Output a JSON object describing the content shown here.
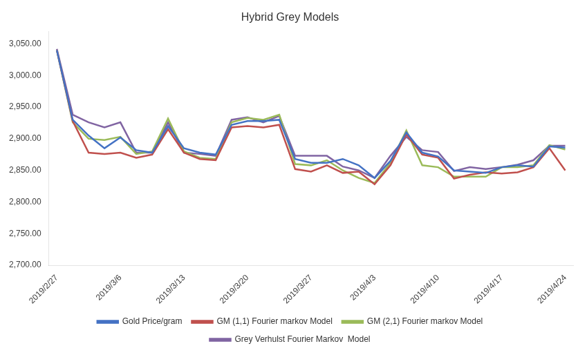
{
  "chart_data": {
    "type": "line",
    "title": "Hybrid Grey Models",
    "categories": [
      "2019/2/27",
      null,
      null,
      null,
      "2019/3/6",
      null,
      null,
      null,
      "2019/3/13",
      null,
      null,
      null,
      "2019/3/20",
      null,
      null,
      null,
      "2019/3/27",
      null,
      null,
      null,
      "2019/4/3",
      null,
      null,
      null,
      "2019/4/10",
      null,
      null,
      null,
      "2019/4/17",
      null,
      null,
      null,
      "2019/4/24"
    ],
    "series": [
      {
        "name": "Gold Price/gram",
        "color": "#4472C4",
        "values": [
          3040,
          2930,
          2905,
          2885,
          2902,
          2882,
          2878,
          2920,
          2885,
          2878,
          2875,
          2922,
          2928,
          2928,
          2930,
          2868,
          2862,
          2862,
          2868,
          2858,
          2838,
          2865,
          2910,
          2878,
          2872,
          2850,
          2848,
          2846,
          2855,
          2858,
          2856,
          2888,
          2886
        ]
      },
      {
        "name": "GM (1,1) Fourier markov Model",
        "color": "#C0504D",
        "values": [
          3040,
          2928,
          2878,
          2876,
          2878,
          2870,
          2875,
          2915,
          2878,
          2868,
          2866,
          2918,
          2920,
          2918,
          2922,
          2852,
          2848,
          2858,
          2846,
          2848,
          2828,
          2858,
          2907,
          2875,
          2870,
          2837,
          2843,
          2847,
          2845,
          2847,
          2855,
          2885,
          2850
        ]
      },
      {
        "name": "GM (2,1) Fourier markov Model",
        "color": "#9BBB59",
        "values": [
          3040,
          2926,
          2900,
          2898,
          2903,
          2876,
          2880,
          2932,
          2880,
          2870,
          2868,
          2926,
          2933,
          2930,
          2938,
          2860,
          2858,
          2866,
          2850,
          2838,
          2830,
          2862,
          2913,
          2858,
          2855,
          2840,
          2840,
          2840,
          2855,
          2855,
          2858,
          2890,
          2883
        ]
      },
      {
        "name": "Grey Verhulst Fourier Markov  Model",
        "color": "#8064A2",
        "values": [
          3042,
          2938,
          2926,
          2918,
          2926,
          2878,
          2878,
          2926,
          2878,
          2876,
          2873,
          2930,
          2934,
          2926,
          2936,
          2873,
          2873,
          2873,
          2856,
          2850,
          2838,
          2873,
          2903,
          2882,
          2879,
          2849,
          2855,
          2852,
          2855,
          2859,
          2866,
          2889,
          2889
        ]
      }
    ],
    "ylim": [
      2700,
      3070
    ],
    "yticks": [
      {
        "value": 2700,
        "label": "2,700.00"
      },
      {
        "value": 2750,
        "label": "2,750.00"
      },
      {
        "value": 2800,
        "label": "2,800.00"
      },
      {
        "value": 2850,
        "label": "2,850.00"
      },
      {
        "value": 2900,
        "label": "2,900.00"
      },
      {
        "value": 2950,
        "label": "2,950.00"
      },
      {
        "value": 3000,
        "label": "3,000.00"
      },
      {
        "value": 3050,
        "label": "3,050.00"
      }
    ],
    "grid": false,
    "legend": "bottom"
  }
}
